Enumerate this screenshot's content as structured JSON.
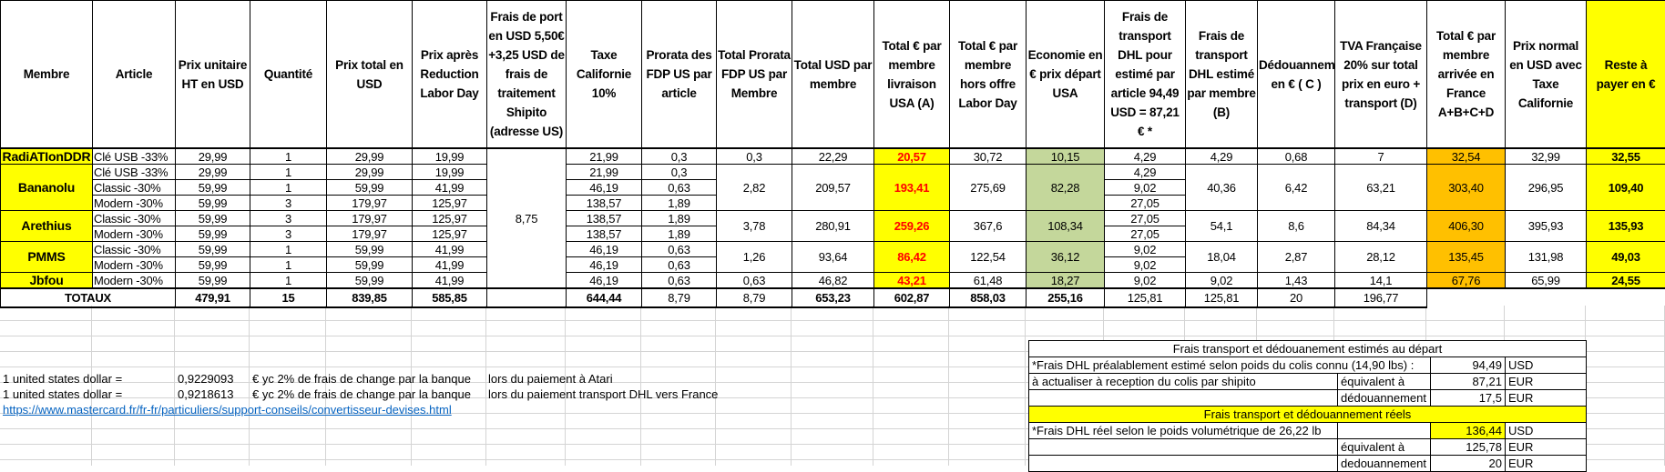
{
  "headers": [
    "Membre",
    "Article",
    "Prix unitaire HT en USD",
    "Quantité",
    "Prix total en USD",
    "Prix après Reduction Labor Day",
    "Frais de port en USD 5,50€ +3,25 USD de frais de traitement Shipito (adresse US)",
    "Taxe Californie 10%",
    "Prorata des FDP US par article",
    "Total Prorata FDP US par Membre",
    "Total USD par membre",
    "Total € par membre livraison USA  (A)",
    "Total € par membre hors offre Labor Day",
    "Economie en € prix départ USA",
    "Frais de transport DHL pour estimé par article 94,49 USD = 87,21 € *",
    "Frais de transport DHL estimé par membre (B)",
    "Dédouannement en € ( C )",
    "TVA Française 20% sur total prix en euro + transport (D)",
    "Total € par membre arrivée en France A+B+C+D",
    "Prix normal en USD avec Taxe Californie",
    "Reste à payer en €"
  ],
  "frais_port_total": "8,75",
  "members": [
    {
      "name": "RadiATIonDDR",
      "articles": [
        {
          "article": "Clé USB -33%",
          "prix_unitaire": "29,99",
          "quantite": "1",
          "prix_total": "29,99",
          "prix_apres": "19,99",
          "taxe": "21,99",
          "prorata": "0,3",
          "dhl_article": "4,29"
        }
      ],
      "total_prorata": "0,3",
      "total_usd": "22,29",
      "total_a": "20,57",
      "hors_offre": "30,72",
      "economie": "10,15",
      "dhl_membre": "4,29",
      "dedouanement": "0,68",
      "tva": "7",
      "total_arrivee": "32,54",
      "prix_normal": "32,99",
      "reste": "32,55"
    },
    {
      "name": "Bananolu",
      "articles": [
        {
          "article": "Clé USB -33%",
          "prix_unitaire": "29,99",
          "quantite": "1",
          "prix_total": "29,99",
          "prix_apres": "19,99",
          "taxe": "21,99",
          "prorata": "0,3",
          "dhl_article": "4,29"
        },
        {
          "article": "Classic -30%",
          "prix_unitaire": "59,99",
          "quantite": "1",
          "prix_total": "59,99",
          "prix_apres": "41,99",
          "taxe": "46,19",
          "prorata": "0,63",
          "dhl_article": "9,02"
        },
        {
          "article": "Modern -30%",
          "prix_unitaire": "59,99",
          "quantite": "3",
          "prix_total": "179,97",
          "prix_apres": "125,97",
          "taxe": "138,57",
          "prorata": "1,89",
          "dhl_article": "27,05"
        }
      ],
      "total_prorata": "2,82",
      "total_usd": "209,57",
      "total_a": "193,41",
      "hors_offre": "275,69",
      "economie": "82,28",
      "dhl_membre": "40,36",
      "dedouanement": "6,42",
      "tva": "63,21",
      "total_arrivee": "303,40",
      "prix_normal": "296,95",
      "reste": "109,40"
    },
    {
      "name": "Arethius",
      "articles": [
        {
          "article": "Classic -30%",
          "prix_unitaire": "59,99",
          "quantite": "3",
          "prix_total": "179,97",
          "prix_apres": "125,97",
          "taxe": "138,57",
          "prorata": "1,89",
          "dhl_article": "27,05"
        },
        {
          "article": "Modern -30%",
          "prix_unitaire": "59,99",
          "quantite": "3",
          "prix_total": "179,97",
          "prix_apres": "125,97",
          "taxe": "138,57",
          "prorata": "1,89",
          "dhl_article": "27,05"
        }
      ],
      "total_prorata": "3,78",
      "total_usd": "280,91",
      "total_a": "259,26",
      "hors_offre": "367,6",
      "economie": "108,34",
      "dhl_membre": "54,1",
      "dedouanement": "8,6",
      "tva": "84,34",
      "total_arrivee": "406,30",
      "prix_normal": "395,93",
      "reste": "135,93"
    },
    {
      "name": "PMMS",
      "articles": [
        {
          "article": "Classic -30%",
          "prix_unitaire": "59,99",
          "quantite": "1",
          "prix_total": "59,99",
          "prix_apres": "41,99",
          "taxe": "46,19",
          "prorata": "0,63",
          "dhl_article": "9,02"
        },
        {
          "article": "Modern -30%",
          "prix_unitaire": "59,99",
          "quantite": "1",
          "prix_total": "59,99",
          "prix_apres": "41,99",
          "taxe": "46,19",
          "prorata": "0,63",
          "dhl_article": "9,02"
        }
      ],
      "total_prorata": "1,26",
      "total_usd": "93,64",
      "total_a": "86,42",
      "hors_offre": "122,54",
      "economie": "36,12",
      "dhl_membre": "18,04",
      "dedouanement": "2,87",
      "tva": "28,12",
      "total_arrivee": "135,45",
      "prix_normal": "131,98",
      "reste": "49,03"
    },
    {
      "name": "Jbfou",
      "articles": [
        {
          "article": "Modern -30%",
          "prix_unitaire": "59,99",
          "quantite": "1",
          "prix_total": "59,99",
          "prix_apres": "41,99",
          "taxe": "46,19",
          "prorata": "0,63",
          "dhl_article": "9,02"
        }
      ],
      "total_prorata": "0,63",
      "total_usd": "46,82",
      "total_a": "43,21",
      "hors_offre": "61,48",
      "economie": "18,27",
      "dhl_membre": "9,02",
      "dedouanement": "1,43",
      "tva": "14,1",
      "total_arrivee": "67,76",
      "prix_normal": "65,99",
      "reste": "24,55"
    }
  ],
  "totals": {
    "label": "TOTAUX",
    "prix_unitaire": "479,91",
    "quantite": "15",
    "prix_total": "839,85",
    "prix_apres": "585,85",
    "taxe": "644,44",
    "prorata": "8,79",
    "total_prorata": "8,79",
    "total_usd": "653,23",
    "total_a": "602,87",
    "hors_offre": "858,03",
    "economie": "255,16",
    "dhl_article": "125,81",
    "dhl_membre": "125,81",
    "dedouanement": "20",
    "tva": "196,77"
  },
  "exchange": [
    {
      "label": "1 united states dollar =",
      "rate": "0,9229093",
      "note": "€ yc 2% de frais de change par la banque",
      "context": "lors du paiement à Atari"
    },
    {
      "label": "1 united states dollar =",
      "rate": "0,9218613",
      "note": "€ yc 2% de frais de change par la banque",
      "context": "lors du paiement transport DHL vers France"
    }
  ],
  "link": "https://www.mastercard.fr/fr-fr/particuliers/support-conseils/convertisseur-devises.html",
  "box": {
    "title_estime": "Frais transport et dédouanement estimés au départ",
    "estime_label": "*Frais DHL préalablement estimé selon poids du colis connu (14,90 lbs) :",
    "estime_usd": "94,49",
    "usd": "USD",
    "actualiser": "à actualiser à reception du colis par shipito",
    "equivalent": "équivalent à",
    "estime_eur": "87,21",
    "eur": "EUR",
    "dedouanement_label": "dédouannement",
    "estime_dedouanement": "17,5",
    "title_reel": "Frais transport et dédouannement réels",
    "reel_label": "*Frais DHL réel selon le poids volumétrique de 26,22 lb",
    "reel_usd": "136,44",
    "equivalent2": "équivalent à",
    "reel_eur": "125,78",
    "dedouanement_label2": "dedouannement",
    "reel_dedouanement": "20"
  },
  "colors": {
    "member": "#ffff00",
    "total_a": "#ffff00",
    "total_a_text": "#ff0000",
    "economie": "#c4d79b",
    "total_arrivee": "#ffc000",
    "reste": "#ffff00"
  }
}
